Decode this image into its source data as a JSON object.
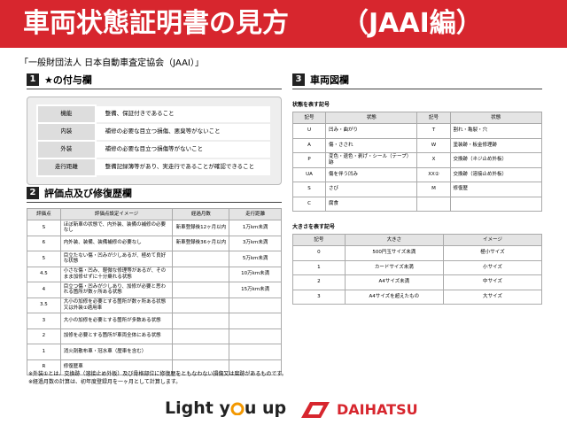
{
  "header": {
    "title": "車両状態証明書の見方",
    "subtitle": "（JAAI編）"
  },
  "organization": "「一般財団法人 日本自動車査定協会（JAAI）」",
  "section1": {
    "number": "1",
    "title": "★の付与欄",
    "rows": [
      [
        "機能",
        "整備、保証付きであること"
      ],
      [
        "内装",
        "補修の必要な目立つ損傷、悪臭等がないこと"
      ],
      [
        "外装",
        "補修の必要な目立つ損傷等がないこと"
      ],
      [
        "走行距離",
        "整備記録簿等があり、実走行であることが確認できること"
      ]
    ]
  },
  "section2": {
    "number": "2",
    "title": "評価点及び修復歴欄",
    "columns": [
      "評価点",
      "評価点設定イメージ",
      "経過月数",
      "走行距離"
    ],
    "rows": [
      [
        "S",
        "ほぼ新車の状態で、内外装、装備の補修の必要なし",
        "新車登録後12ヶ月以内",
        "1万km未満"
      ],
      [
        "6",
        "内外装、装備、装備補修の必要なし",
        "新車登録後36ヶ月以内",
        "3万km未満"
      ],
      [
        "5",
        "目立たない傷・凹みが少しあるが、極めて良好な状態",
        null,
        "5万km未満"
      ],
      [
        "4.5",
        "小さな傷・凹み、軽微な修理等があるが、そのまま加修せずに十分乗れる状態",
        null,
        "10万km未満"
      ],
      [
        "4",
        "目立つ傷・凹みが少しあり、加修が必要と思われる箇所が数ヶ所ある状態",
        null,
        "15万km未満"
      ],
      [
        "3.5",
        "大小の加修を必要とする箇所が数ヶ所ある状態又は外装①適用車",
        null,
        null
      ],
      [
        "3",
        "大小の加修を必要とする箇所が多数ある状態",
        null,
        null
      ],
      [
        "2",
        "加修を必要とする箇所が車両全体にある状態",
        null,
        null
      ],
      [
        "1",
        "消火剤散布車・冠水車（歴車を含む）",
        null,
        null
      ],
      [
        "R",
        "修復歴車",
        null,
        null
      ]
    ]
  },
  "notes": [
    "※外装①とは、交換跡（溶接止め外板）及び骨格部位に修復歴をともなわない損傷又は腐跡があるものです。",
    "※経過月数の計算は、初年度登録月を一ヶ月として計算します。"
  ],
  "section3": {
    "number": "3",
    "title": "車両図欄",
    "state_caption": "状態を表す記号",
    "state_columns": [
      "記号",
      "状態",
      "記号",
      "状態"
    ],
    "state_rows": [
      [
        "U",
        "凹み・曲がり",
        "T",
        "割れ・亀裂・穴"
      ],
      [
        "A",
        "傷・さされ",
        "W",
        "塗装跡・板金修理跡"
      ],
      [
        "P",
        "変色・退色・剥げ・シール（テープ）跡",
        "X",
        "交換跡（ネジ止め外板）"
      ],
      [
        "UA",
        "傷を伴う凹み",
        "XX②",
        "交換跡（溶接止め外板）"
      ],
      [
        "S",
        "さび",
        "M",
        "修復歴"
      ],
      [
        "C",
        "腐食",
        null,
        null
      ]
    ],
    "size_caption": "大きさを表す記号",
    "size_columns": [
      "記号",
      "大きさ",
      "イメージ"
    ],
    "size_rows": [
      [
        "0",
        "500円玉サイズ未満",
        "極小サイズ"
      ],
      [
        "1",
        "カードサイズ未満",
        "小サイズ"
      ],
      [
        "2",
        "A4サイズ未満",
        "中サイズ"
      ],
      [
        "3",
        "A4サイズを超えたもの",
        "大サイズ"
      ]
    ]
  },
  "footer": {
    "slogan_start": "Light y",
    "slogan_end": "u up",
    "brand": "DAIHATSU"
  }
}
